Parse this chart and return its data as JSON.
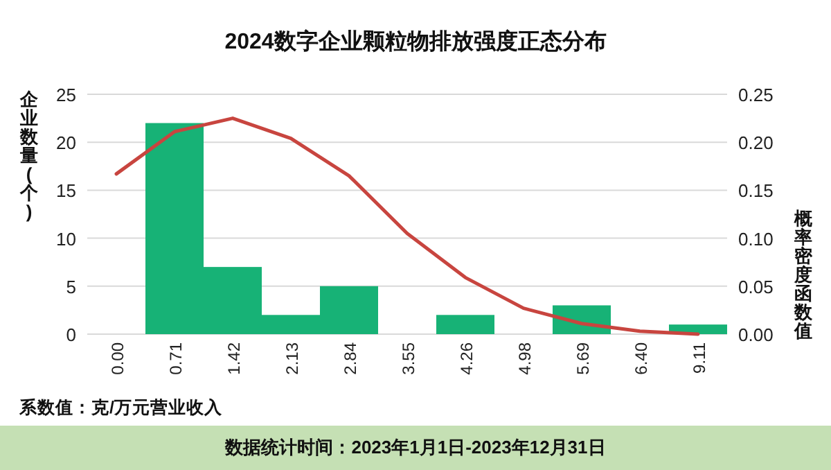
{
  "chart_data": {
    "type": "bar",
    "title": "2024数字企业颗粒物排放强度正态分布",
    "ylabel": "企业数量(个)",
    "y2label": "概率密度函数值",
    "categories": [
      "0.00",
      "0.71",
      "1.42",
      "2.13",
      "2.84",
      "3.55",
      "4.26",
      "4.98",
      "5.69",
      "6.40",
      "9.11"
    ],
    "series": [
      {
        "color": "#17b276",
        "values": [
          0,
          22,
          7,
          2,
          5,
          0,
          2,
          0,
          3,
          0,
          1
        ]
      },
      {
        "type": "line",
        "axis": "y2",
        "color": "#c8453f",
        "values": [
          0.167,
          0.211,
          0.225,
          0.204,
          0.165,
          0.105,
          0.059,
          0.027,
          0.011,
          0.003,
          0.0
        ]
      }
    ],
    "ylim": [
      0,
      25
    ],
    "yticks": [
      0,
      5,
      10,
      15,
      20,
      25
    ],
    "y2lim": [
      0,
      0.25
    ],
    "y2ticks": [
      {
        "value": 0,
        "label": "0.00"
      },
      {
        "value": 0.05,
        "label": "0.05"
      },
      {
        "value": 0.1,
        "label": "0.10"
      },
      {
        "value": 0.15,
        "label": "0.15"
      },
      {
        "value": 0.2,
        "label": "0.20"
      },
      {
        "value": 0.25,
        "label": "0.25"
      }
    ],
    "grid": "y",
    "annotations": [
      "系数值：克/万元营业收入",
      "数据统计时间：2023年1月1日-2023年12月31日"
    ]
  }
}
